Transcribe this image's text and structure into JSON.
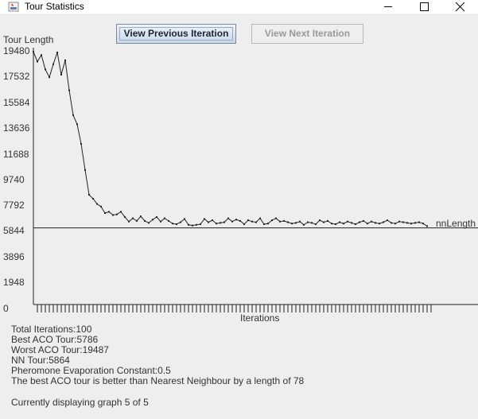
{
  "window": {
    "title": "Tour Statistics"
  },
  "buttons": {
    "prev_label": "View Previous Iteration",
    "next_label": "View Next Iteration"
  },
  "chart_data": {
    "type": "line",
    "title": "",
    "ylabel": "Tour Length",
    "xlabel": "Iterations",
    "ylim": [
      0,
      19480
    ],
    "yticks": [
      "19480",
      "17532",
      "15584",
      "13636",
      "11688",
      "9740",
      "7792",
      "5844",
      "3896",
      "1948",
      "0"
    ],
    "reference_line": {
      "label": "nnLength",
      "value": 5864
    },
    "series": [
      {
        "values": [
          19350,
          18600,
          19100,
          18000,
          17400,
          18400,
          19300,
          17600,
          18700,
          16400,
          14500,
          13800,
          12300,
          10300,
          8400,
          8100,
          7700,
          7500,
          7000,
          7100,
          6850,
          6900,
          7100,
          6700,
          6350,
          6600,
          6400,
          6750,
          6400,
          6250,
          6500,
          6700,
          6350,
          6600,
          6400,
          6200,
          6150,
          6300,
          6550,
          6100,
          6050,
          6100,
          6150,
          6550,
          6300,
          6450,
          6200,
          6250,
          6300,
          6600,
          6350,
          6500,
          6400,
          6150,
          6450,
          6350,
          6300,
          6600,
          6150,
          6200,
          6450,
          6600,
          6350,
          6400,
          6300,
          6200,
          6250,
          6350,
          6100,
          6300,
          6250,
          6150,
          6450,
          6300,
          6400,
          6200,
          6150,
          6300,
          6200,
          6350,
          6250,
          6150,
          6300,
          6400,
          6200,
          6350,
          6250,
          6200,
          6300,
          6450,
          6250,
          6200,
          6350,
          6300,
          6250,
          6200,
          6250,
          6300,
          6200,
          6000
        ]
      }
    ],
    "x_count": 100,
    "grid": false
  },
  "stats": {
    "total_iterations": "Total Iterations:100",
    "best_tour": "Best ACO Tour:5786",
    "worst_tour": "Worst ACO Tour:19487",
    "nn_tour": "NN Tour:5864",
    "evaporation": "Pheromone Evaporation Constant:0.5",
    "comparison": "The best ACO tour is better than Nearest Neighbour by a length of 78"
  },
  "footer": {
    "display_text": "Currently displaying graph 5 of 5"
  }
}
